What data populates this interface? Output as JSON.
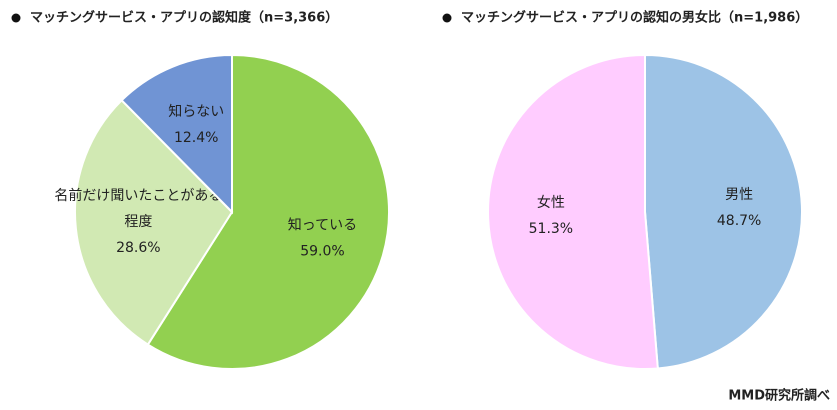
{
  "chart_data": [
    {
      "type": "pie",
      "title": "マッチングサービス・アプリの認知度（n=3,366）",
      "categories": [
        "知っている",
        "名前だけ聞いたことがある程度",
        "知らない"
      ],
      "values": [
        59.0,
        28.6,
        12.4
      ],
      "value_labels": [
        "59.0%",
        "28.6%",
        "12.4%"
      ],
      "colors": [
        "#92d050",
        "#d1e9b3",
        "#7094d4"
      ]
    },
    {
      "type": "pie",
      "title": "マッチングサービス・アプリの認知の男女比（n=1,986）",
      "categories": [
        "男性",
        "女性"
      ],
      "values": [
        48.7,
        51.3
      ],
      "value_labels": [
        "48.7%",
        "51.3%"
      ],
      "colors": [
        "#9dc3e6",
        "#ffccff"
      ]
    }
  ],
  "source": "MMD研究所調べ"
}
